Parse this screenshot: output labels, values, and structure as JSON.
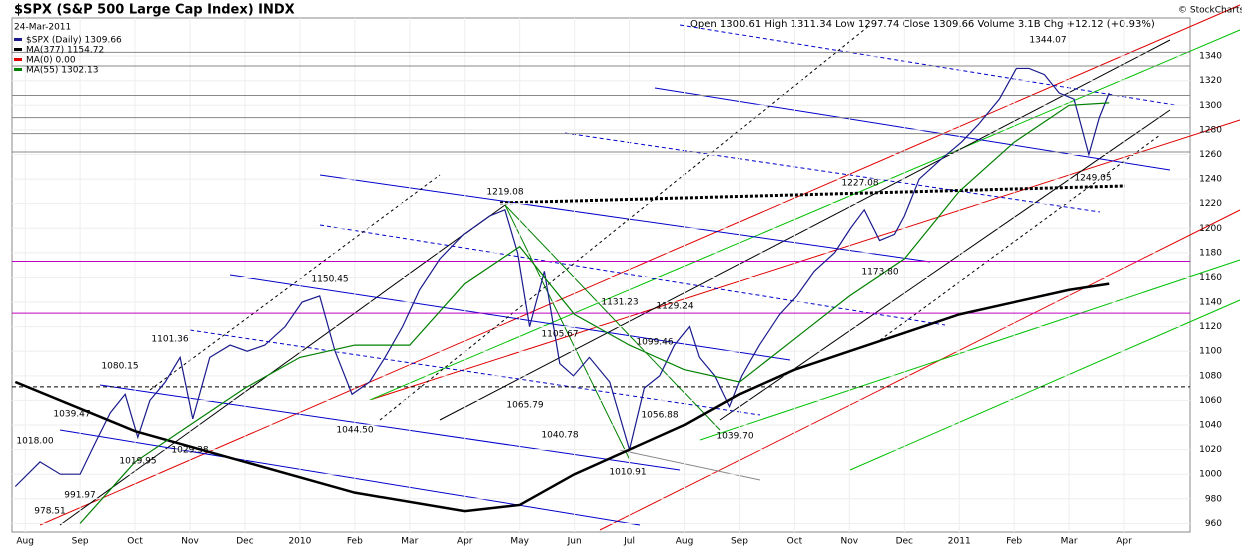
{
  "chart_data": {
    "type": "line",
    "title": "$SPX (S&P 500 Large Cap Index) INDX",
    "date": "24-Mar-2011",
    "header": "Open 1300.61 High 1311.34 Low 1297.74 Close 1309.66 Volume 3.1B Chg +12.12 (+0.93%)",
    "copyright": "© StockCharts.com",
    "x": [
      -0.18,
      0.27,
      0.64,
      1.0,
      1.27,
      1.55,
      1.82,
      2.05,
      2.27,
      2.55,
      2.82,
      3.05,
      3.36,
      3.73,
      4.04,
      4.36,
      4.73,
      5.04,
      5.36,
      5.64,
      5.95,
      6.27,
      6.55,
      6.87,
      7.18,
      7.55,
      7.98,
      8.45,
      8.73,
      8.96,
      9.18,
      9.45,
      9.73,
      9.98,
      10.27,
      10.64,
      11.0,
      11.27,
      11.55,
      11.82,
      12.09,
      12.27,
      12.55,
      12.82,
      13.04,
      13.36,
      13.73,
      14.04,
      14.36,
      14.73,
      15.02,
      15.27,
      15.55,
      15.82,
      16.0,
      16.27,
      16.64,
      17.04,
      17.36,
      17.73,
      18.04,
      18.27,
      18.55,
      18.82,
      19.09,
      19.36,
      19.55,
      19.73
    ],
    "series": [
      {
        "name": "$SPX (Daily) 1309.66",
        "color": "#1a1a8c",
        "values": [
          990,
          1010,
          1000,
          1000,
          1025,
          1050,
          1065,
          1030,
          1060,
          1075,
          1095,
          1045,
          1095,
          1105,
          1100,
          1105,
          1120,
          1140,
          1145,
          1100,
          1065,
          1075,
          1095,
          1120,
          1150,
          1175,
          1195,
          1210,
          1215,
          1180,
          1120,
          1165,
          1090,
          1080,
          1095,
          1075,
          1020,
          1070,
          1080,
          1105,
          1120,
          1095,
          1080,
          1055,
          1080,
          1105,
          1130,
          1145,
          1165,
          1180,
          1200,
          1215,
          1190,
          1195,
          1210,
          1240,
          1255,
          1270,
          1285,
          1305,
          1330,
          1330,
          1325,
          1310,
          1305,
          1260,
          1290,
          1310
        ]
      },
      {
        "name": "MA(377) 1154.72",
        "color": "#000000",
        "x": [
          -0.18,
          2,
          4,
          6,
          8,
          9,
          10,
          11,
          12,
          13,
          14,
          15,
          16,
          17,
          18,
          19,
          19.73
        ],
        "values": [
          1075,
          1035,
          1010,
          985,
          970,
          975,
          1000,
          1020,
          1040,
          1065,
          1085,
          1100,
          1115,
          1130,
          1140,
          1150,
          1155
        ]
      },
      {
        "name": "MA(0) 0.00",
        "color": "#e00000",
        "x": [],
        "values": []
      },
      {
        "name": "MA(55) 1302.13",
        "color": "#008000",
        "x": [
          1,
          2,
          3,
          4,
          5,
          6,
          7,
          8,
          9,
          10,
          11,
          12,
          13,
          14,
          15,
          16,
          17,
          18,
          19,
          19.73
        ],
        "values": [
          960,
          1010,
          1040,
          1070,
          1095,
          1105,
          1105,
          1155,
          1185,
          1130,
          1105,
          1085,
          1075,
          1110,
          1145,
          1175,
          1230,
          1270,
          1300,
          1302
        ]
      }
    ],
    "annotations": [
      "1344.07",
      "1249.05",
      "1227.08",
      "1219.08",
      "1173.80",
      "1150.45",
      "1131.23",
      "1129.24",
      "1105.67",
      "1099.46",
      "1101.36",
      "1080.15",
      "1065.79",
      "1056.88",
      "1044.50",
      "1040.78",
      "1039.70",
      "1039.47",
      "1018.00",
      "1019.95",
      "1029.38",
      "1010.91",
      "991.97",
      "978.51"
    ],
    "reference_lines": [
      {
        "value": 1343,
        "color": "#888888"
      },
      {
        "value": 1332,
        "color": "#888888"
      },
      {
        "value": 1308,
        "color": "#888888"
      },
      {
        "value": 1290,
        "color": "#888888"
      },
      {
        "value": 1277,
        "color": "#888888"
      },
      {
        "value": 1262,
        "color": "#888888"
      },
      {
        "value": 1173,
        "color": "#c000c0"
      },
      {
        "value": 1131,
        "color": "#c000c0"
      },
      {
        "value": 1071,
        "color": "#000000",
        "dashed": true
      }
    ],
    "xlim": [
      -0.24,
      21.2
    ],
    "xticks": [
      {
        "value": 0,
        "label": "Aug"
      },
      {
        "value": 1,
        "label": "Sep"
      },
      {
        "value": 2,
        "label": "Oct"
      },
      {
        "value": 3,
        "label": "Nov"
      },
      {
        "value": 4,
        "label": "Dec"
      },
      {
        "value": 5,
        "label": "2010"
      },
      {
        "value": 6,
        "label": "Feb"
      },
      {
        "value": 7,
        "label": "Mar"
      },
      {
        "value": 8,
        "label": "Apr"
      },
      {
        "value": 9,
        "label": "May"
      },
      {
        "value": 10,
        "label": "Jun"
      },
      {
        "value": 11,
        "label": "Jul"
      },
      {
        "value": 12,
        "label": "Aug"
      },
      {
        "value": 13,
        "label": "Sep"
      },
      {
        "value": 14,
        "label": "Oct"
      },
      {
        "value": 15,
        "label": "Nov"
      },
      {
        "value": 16,
        "label": "Dec"
      },
      {
        "value": 17,
        "label": "2011"
      },
      {
        "value": 18,
        "label": "Feb"
      },
      {
        "value": 19,
        "label": "Mar"
      },
      {
        "value": 20,
        "label": "Apr"
      }
    ],
    "ylim": [
      953,
      1371
    ],
    "yticks": [
      960,
      980,
      1000,
      1020,
      1040,
      1060,
      1080,
      1100,
      1120,
      1140,
      1160,
      1180,
      1200,
      1220,
      1240,
      1260,
      1280,
      1300,
      1320,
      1340
    ],
    "grid": true
  }
}
